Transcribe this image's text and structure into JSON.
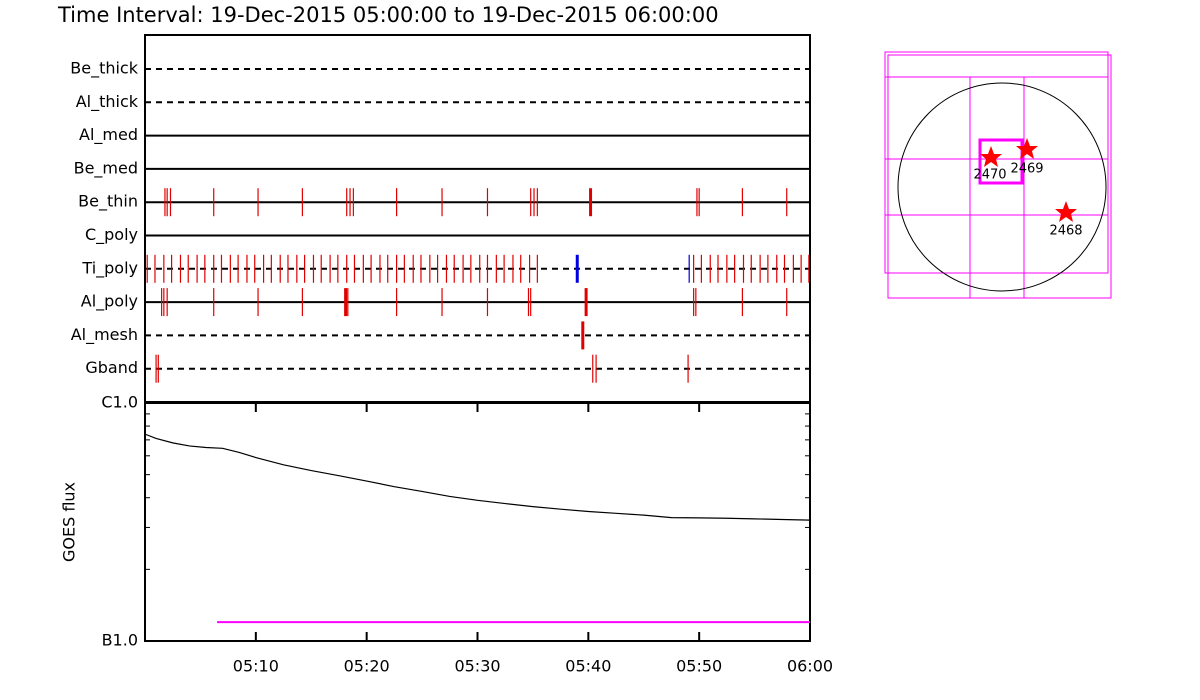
{
  "chart_data": [
    {
      "type": "timeline",
      "title": "Time Interval: 19-Dec-2015 05:00:00 to 19-Dec-2015 06:00:00",
      "xlim": [
        0,
        60
      ],
      "filters": [
        {
          "name": "Be_thick",
          "style": "dashed",
          "marks": []
        },
        {
          "name": "Al_thick",
          "style": "dashed",
          "marks": []
        },
        {
          "name": "Al_med",
          "style": "solid",
          "marks": []
        },
        {
          "name": "Be_med",
          "style": "solid",
          "marks": []
        },
        {
          "name": "Be_thin",
          "style": "solid",
          "marks": [
            {
              "color": "#e00000",
              "width": 1.2,
              "times": [
                1.8,
                2.0,
                2.3,
                6.2,
                10.2,
                14.2,
                18.2,
                18.5,
                18.8,
                22.7,
                26.8,
                30.9,
                34.8,
                35.1,
                35.4,
                49.8,
                50.0,
                53.9,
                57.9
              ]
            },
            {
              "color": "#e00000",
              "width": 3,
              "times": [
                40.2
              ]
            }
          ]
        },
        {
          "name": "C_poly",
          "style": "solid",
          "marks": []
        },
        {
          "name": "Ti_poly",
          "style": "dashed",
          "marks": [
            {
              "color": "#e00000",
              "width": 1.2,
              "times": [
                0.2,
                0.9,
                1.7,
                2.4,
                3.2,
                3.9,
                4.7,
                5.4,
                6.2,
                6.9,
                7.7,
                8.4,
                9.2,
                9.9,
                10.7,
                11.4,
                12.2,
                12.9,
                13.7,
                14.4,
                15.2,
                15.9,
                16.7,
                17.4,
                18.2,
                18.9,
                19.7,
                20.4,
                21.2,
                21.9,
                22.7,
                23.4,
                24.2,
                24.9,
                25.7,
                26.4,
                27.2,
                27.9,
                28.7,
                29.4,
                30.2,
                30.9,
                31.7,
                32.4,
                33.2,
                33.9,
                34.7,
                35.4,
                49.5,
                50.2,
                51.0,
                51.7,
                52.5,
                53.2,
                54.0,
                54.7,
                55.5,
                56.2,
                57.0,
                57.7,
                58.5,
                59.2,
                59.9
              ]
            },
            {
              "color": "#0000e0",
              "width": 1.2,
              "times": [
                49.1
              ]
            },
            {
              "color": "#0000e0",
              "width": 3,
              "times": [
                39.0
              ]
            }
          ]
        },
        {
          "name": "Al_poly",
          "style": "solid",
          "marks": [
            {
              "color": "#e00000",
              "width": 1.2,
              "times": [
                1.5,
                1.7,
                2.0,
                6.2,
                10.2,
                14.2,
                18.3,
                22.7,
                26.8,
                30.9,
                34.6,
                34.8,
                49.5,
                49.7,
                53.9,
                57.9
              ]
            },
            {
              "color": "#e00000",
              "width": 3,
              "times": [
                18.1,
                39.8
              ]
            }
          ]
        },
        {
          "name": "Al_mesh",
          "style": "dashed",
          "marks": [
            {
              "color": "#e00000",
              "width": 3,
              "times": [
                39.5
              ]
            }
          ]
        },
        {
          "name": "Gband",
          "style": "dashed",
          "marks": [
            {
              "color": "#e00000",
              "width": 1.2,
              "times": [
                1.0,
                1.2,
                40.4,
                40.7,
                49.0
              ]
            }
          ]
        }
      ]
    },
    {
      "type": "line",
      "ylabel": "GOES flux",
      "log_y": true,
      "xlim": [
        0,
        60
      ],
      "xticks": [
        {
          "value": 10,
          "label": "05:10"
        },
        {
          "value": 20,
          "label": "05:20"
        },
        {
          "value": 30,
          "label": "05:30"
        },
        {
          "value": 40,
          "label": "05:40"
        },
        {
          "value": 50,
          "label": "05:50"
        },
        {
          "value": 60,
          "label": "06:00"
        }
      ],
      "ylim": [
        1e-07,
        1e-06
      ],
      "yticks": [
        {
          "value": 1e-07,
          "label": "B1.0"
        },
        {
          "value": 1e-06,
          "label": "C1.0"
        }
      ],
      "yticks_minor": [
        2e-07,
        3e-07,
        4e-07,
        5e-07,
        6e-07,
        7e-07,
        8e-07,
        9e-07
      ],
      "series": [
        {
          "color": "#000000",
          "x": [
            0,
            1,
            2.5,
            4,
            5.5,
            7,
            8.5,
            10,
            12.5,
            15,
            17.5,
            20,
            22.5,
            25,
            27.5,
            30,
            32.5,
            35,
            37.5,
            40,
            42.5,
            45,
            47.5,
            50,
            52.5,
            55,
            57.5,
            60
          ],
          "values": [
            7.4e-07,
            7.1e-07,
            6.8e-07,
            6.6e-07,
            6.5e-07,
            6.45e-07,
            6.2e-07,
            5.9e-07,
            5.5e-07,
            5.2e-07,
            4.95e-07,
            4.7e-07,
            4.45e-07,
            4.25e-07,
            4.05e-07,
            3.9e-07,
            3.78e-07,
            3.67e-07,
            3.58e-07,
            3.5e-07,
            3.44e-07,
            3.38e-07,
            3.3e-07,
            3.29e-07,
            3.28e-07,
            3.26e-07,
            3.24e-07,
            3.22e-07
          ]
        },
        {
          "color": "#ff00ff",
          "x": [
            6.5,
            60
          ],
          "values": [
            1.2e-07,
            1.2e-07
          ]
        }
      ]
    }
  ],
  "map": {
    "regions": [
      {
        "label": "2470"
      },
      {
        "label": "2469"
      },
      {
        "label": "2468"
      }
    ]
  }
}
